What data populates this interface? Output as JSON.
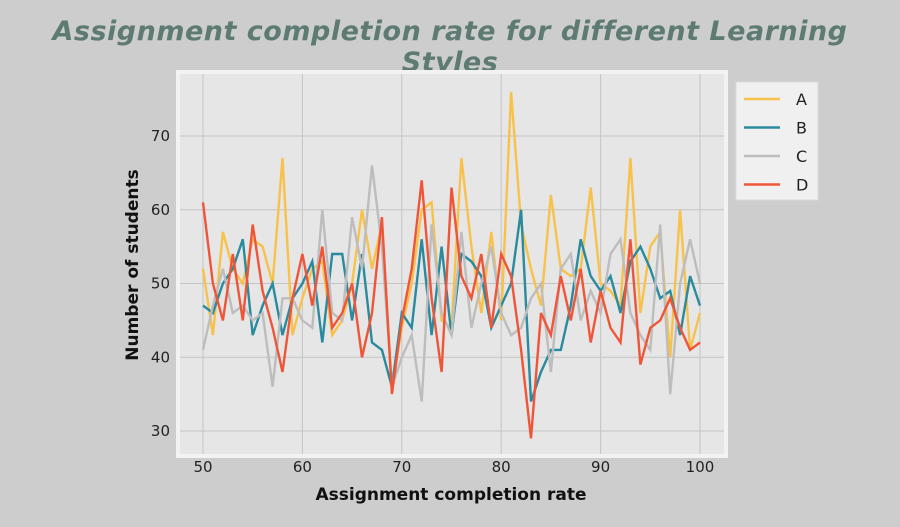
{
  "chart_data": {
    "type": "line",
    "title": "Assignment completion rate for different Learning Styles",
    "xlabel": "Assignment completion rate",
    "ylabel": "Number of students",
    "xlim": [
      47.5,
      102.5
    ],
    "ylim": [
      27,
      78
    ],
    "xticks": [
      50,
      60,
      70,
      80,
      90,
      100
    ],
    "yticks": [
      30,
      40,
      50,
      60,
      70
    ],
    "grid": true,
    "legend_position": "outside-top-right",
    "x_start": 50,
    "x_step": 1,
    "series": [
      {
        "name": "A",
        "color": "#f8c24a",
        "values": [
          52,
          43,
          57,
          52,
          50,
          56,
          55,
          50,
          67,
          43,
          48,
          52,
          53,
          43,
          45,
          50,
          60,
          52,
          58,
          36,
          44,
          50,
          60,
          61,
          45,
          44,
          67,
          55,
          46,
          57,
          45,
          76,
          58,
          52,
          47,
          62,
          52,
          51,
          52,
          63,
          50,
          49,
          47,
          67,
          46,
          55,
          57,
          40,
          60,
          41,
          46
        ]
      },
      {
        "name": "B",
        "color": "#2a8a9e",
        "values": [
          47,
          46,
          50,
          52,
          56,
          43,
          47,
          50,
          43,
          48,
          50,
          53,
          42,
          54,
          54,
          45,
          54,
          42,
          41,
          36,
          46,
          44,
          56,
          43,
          55,
          43,
          54,
          53,
          51,
          44,
          47,
          50,
          60,
          34,
          38,
          41,
          41,
          47,
          56,
          51,
          49,
          51,
          46,
          53,
          55,
          52,
          48,
          49,
          43,
          51,
          47
        ]
      },
      {
        "name": "C",
        "color": "#bdbdbd",
        "values": [
          41,
          47,
          52,
          46,
          47,
          45,
          46,
          36,
          48,
          48,
          45,
          44,
          60,
          46,
          45,
          59,
          52,
          66,
          55,
          36,
          40,
          43,
          34,
          58,
          46,
          43,
          57,
          44,
          50,
          55,
          46,
          43,
          44,
          48,
          50,
          38,
          52,
          54,
          45,
          49,
          46,
          54,
          56,
          46,
          43,
          41,
          58,
          35,
          50,
          56,
          50
        ]
      },
      {
        "name": "D",
        "color": "#ef5538",
        "values": [
          61,
          50,
          45,
          54,
          45,
          58,
          49,
          44,
          38,
          48,
          54,
          47,
          55,
          44,
          46,
          50,
          40,
          46,
          59,
          35,
          45,
          52,
          64,
          48,
          38,
          63,
          51,
          48,
          54,
          44,
          54,
          51,
          41,
          29,
          46,
          43,
          51,
          45,
          52,
          42,
          49,
          44,
          42,
          56,
          39,
          44,
          45,
          48,
          44,
          41,
          42
        ]
      }
    ]
  }
}
